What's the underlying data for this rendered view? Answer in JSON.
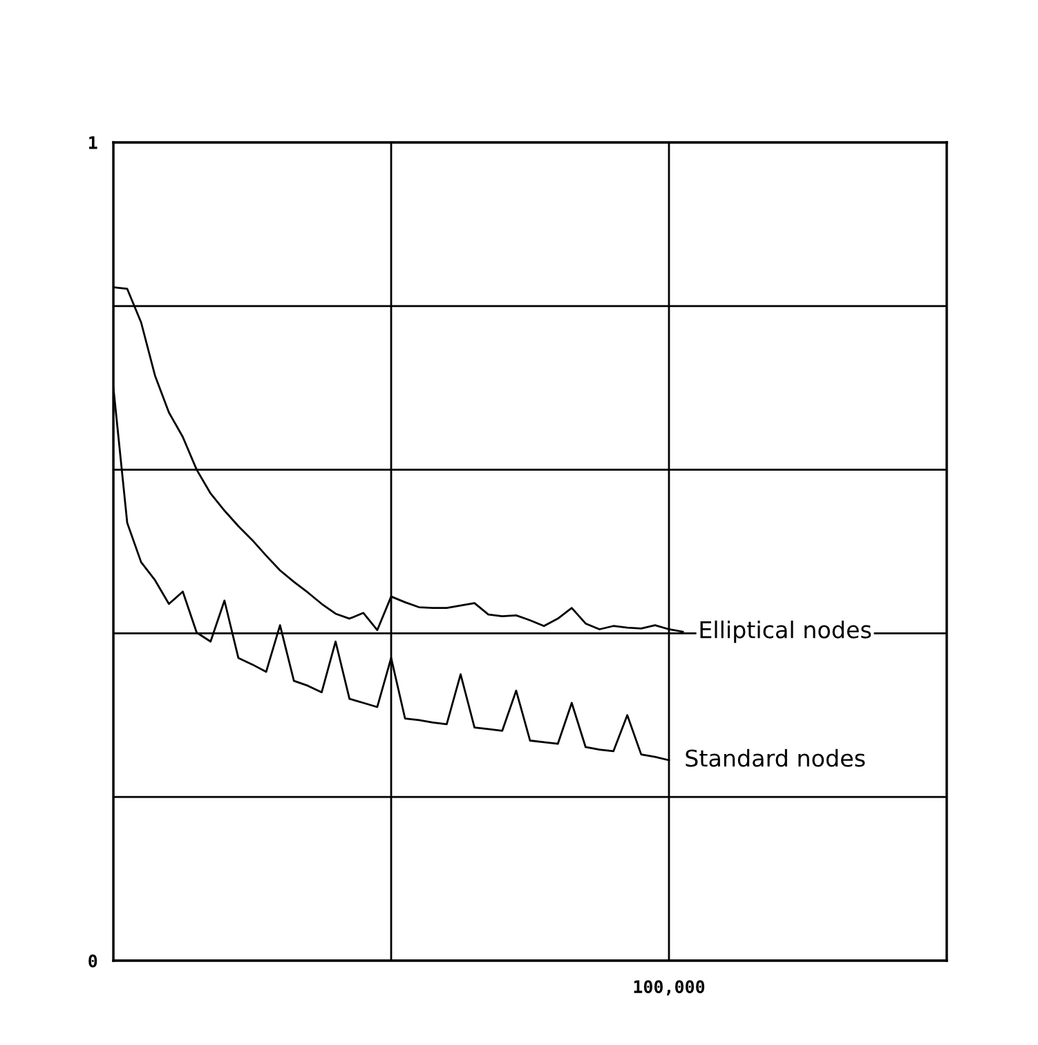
{
  "chart_data": {
    "type": "line",
    "categories": [
      null,
      null,
      null,
      null,
      null,
      null,
      null,
      null,
      null,
      null,
      null,
      null,
      null,
      null,
      null,
      null,
      null,
      null,
      null,
      null,
      null,
      null,
      null,
      null,
      null,
      null,
      null,
      null,
      null,
      null,
      null,
      null,
      null,
      null,
      null,
      null,
      null,
      null,
      null,
      null,
      null,
      null,
      null,
      null,
      null,
      null,
      null,
      null,
      null,
      null,
      null,
      null,
      null,
      null,
      null,
      null,
      null,
      null,
      null,
      null,
      null
    ],
    "ylim": [
      0,
      1
    ],
    "yticks": [
      {
        "value": 0,
        "label": "0"
      },
      {
        "value": 0.2,
        "label": null
      },
      {
        "value": 0.4,
        "label": null
      },
      {
        "value": 0.6,
        "label": null
      },
      {
        "value": 0.8,
        "label": null
      },
      {
        "value": 1,
        "label": "1"
      }
    ],
    "annotations": [
      "100,000"
    ],
    "grid": true,
    "marker": "none",
    "line_style": "solid",
    "series": [
      {
        "name": "Elliptical nodes",
        "color": "#000000",
        "values": [
          0.823,
          0.821,
          0.78,
          0.715,
          0.67,
          0.64,
          0.6,
          0.571,
          0.55,
          0.531,
          0.514,
          0.495,
          0.477,
          0.463,
          0.45,
          0.436,
          0.424,
          0.418,
          0.425,
          0.404,
          0.445,
          0.438,
          0.432,
          0.431,
          0.431,
          0.434,
          0.437,
          0.423,
          0.421,
          0.422,
          0.416,
          0.409,
          0.418,
          0.431,
          0.412,
          0.405,
          0.409,
          0.407,
          0.406,
          0.41,
          0.405,
          0.402,
          null,
          null,
          null,
          null,
          null,
          null,
          null,
          null,
          null,
          null,
          null,
          null,
          null,
          null,
          null,
          null,
          null,
          null,
          null
        ]
      },
      {
        "name": "Standard nodes",
        "color": "#000000",
        "values": [
          0.701,
          0.535,
          0.487,
          0.465,
          0.436,
          0.451,
          0.401,
          0.39,
          0.44,
          0.37,
          0.362,
          0.353,
          0.41,
          0.342,
          0.336,
          0.328,
          0.39,
          0.32,
          0.315,
          0.31,
          0.37,
          0.296,
          0.294,
          0.291,
          0.289,
          0.35,
          0.285,
          0.283,
          0.281,
          0.33,
          0.269,
          0.267,
          0.265,
          0.315,
          0.261,
          0.258,
          0.256,
          0.3,
          0.252,
          0.249,
          0.245,
          null,
          null,
          null,
          null,
          null,
          null,
          null,
          null,
          null,
          null,
          null,
          null,
          null,
          null,
          null,
          null,
          null,
          null,
          null,
          null
        ]
      }
    ]
  }
}
